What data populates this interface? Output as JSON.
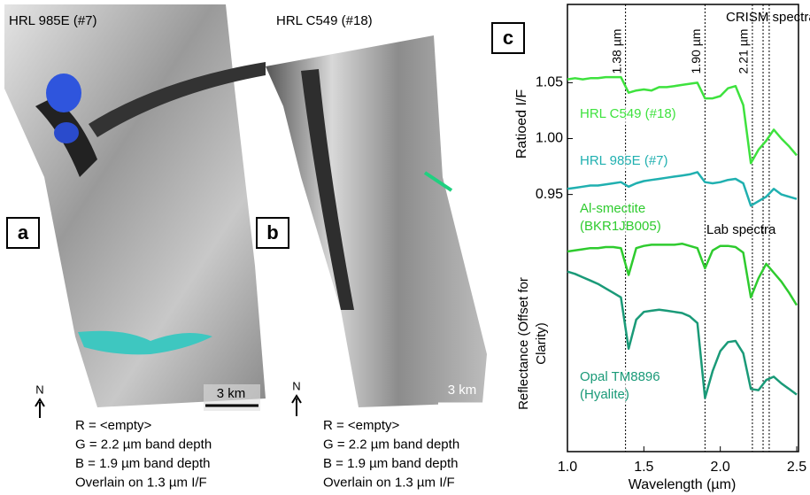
{
  "panels": [
    {
      "letter": "a",
      "title": "HRL 985E (#7)",
      "scale": "3 km",
      "north": "N",
      "caption": [
        "R = <empty>",
        "G = 2.2 µm band depth",
        "B = 1.9 µm band depth",
        "Overlain on 1.3 µm I/F"
      ]
    },
    {
      "letter": "b",
      "title": "HRL C549 (#18)",
      "scale": "3 km",
      "north": "N",
      "caption": [
        "R = <empty>",
        "G = 2.2 µm band depth",
        "B = 1.9 µm band depth",
        "Overlain on 1.3 µm I/F"
      ]
    }
  ],
  "chart_data": {
    "type": "line",
    "letter": "c",
    "xlabel": "Wavelength (µm)",
    "ylabel": "Ratioed I/F",
    "ylabel2": "Reflectance (Offset for Clarity)",
    "annotations": [
      "CRISM spectra",
      "Lab spectra"
    ],
    "x": [
      1.0,
      1.05,
      1.1,
      1.15,
      1.2,
      1.25,
      1.3,
      1.35,
      1.4,
      1.45,
      1.5,
      1.55,
      1.6,
      1.65,
      1.7,
      1.75,
      1.8,
      1.85,
      1.9,
      1.95,
      2.0,
      2.05,
      2.1,
      2.15,
      2.2,
      2.25,
      2.3,
      2.35,
      2.4,
      2.45,
      2.5
    ],
    "series": [
      {
        "name": "HRL C549 (#18)",
        "color": "#3ee23e",
        "values": [
          1.053,
          1.054,
          1.053,
          1.054,
          1.054,
          1.055,
          1.055,
          1.055,
          1.041,
          1.043,
          1.044,
          1.043,
          1.046,
          1.046,
          1.047,
          1.048,
          1.049,
          1.05,
          1.036,
          1.036,
          1.038,
          1.045,
          1.047,
          1.03,
          0.978,
          0.99,
          0.998,
          1.008,
          1.0,
          0.993,
          0.985
        ]
      },
      {
        "name": "HRL 985E (#7)",
        "color": "#20b0b0",
        "values": [
          0.955,
          0.956,
          0.957,
          0.958,
          0.958,
          0.959,
          0.96,
          0.961,
          0.957,
          0.96,
          0.962,
          0.963,
          0.964,
          0.965,
          0.966,
          0.967,
          0.968,
          0.97,
          0.961,
          0.96,
          0.961,
          0.963,
          0.964,
          0.96,
          0.94,
          0.944,
          0.948,
          0.955,
          0.95,
          0.948,
          0.946
        ]
      },
      {
        "name": "Al-smectite (BKR1JB005)",
        "color": "#2ecb2e",
        "values": [
          0.899,
          0.9,
          0.901,
          0.902,
          0.902,
          0.903,
          0.903,
          0.902,
          0.878,
          0.902,
          0.904,
          0.905,
          0.905,
          0.905,
          0.905,
          0.906,
          0.904,
          0.902,
          0.884,
          0.9,
          0.904,
          0.904,
          0.903,
          0.898,
          0.858,
          0.875,
          0.888,
          0.88,
          0.872,
          0.862,
          0.851
        ]
      },
      {
        "name": "Opal TM8896 (Hyalite)",
        "color": "#1a9a78",
        "values": [
          0.881,
          0.879,
          0.876,
          0.873,
          0.87,
          0.866,
          0.862,
          0.858,
          0.812,
          0.838,
          0.845,
          0.846,
          0.847,
          0.846,
          0.845,
          0.844,
          0.841,
          0.835,
          0.768,
          0.792,
          0.81,
          0.818,
          0.819,
          0.808,
          0.776,
          0.775,
          0.784,
          0.787,
          0.781,
          0.776,
          0.771
        ]
      }
    ],
    "xlim": [
      1.0,
      2.5
    ],
    "ylim": [
      0.72,
      1.12
    ],
    "xticks": [
      {
        "value": 1.0,
        "label": "1.0"
      },
      1.5,
      {
        "value": 2.0,
        "label": "2.0"
      },
      2.5
    ],
    "yticks": [
      0.95,
      {
        "value": 1.0,
        "label": "1.00"
      },
      1.05
    ],
    "ref_lines": [
      {
        "value": 1.38,
        "label": "1.38 µm"
      },
      {
        "value": 1.9,
        "label": "1.90 µm"
      },
      {
        "value": 2.21,
        "label": "2.21 µm"
      },
      {
        "value": 2.28
      },
      {
        "value": 2.32
      }
    ]
  }
}
